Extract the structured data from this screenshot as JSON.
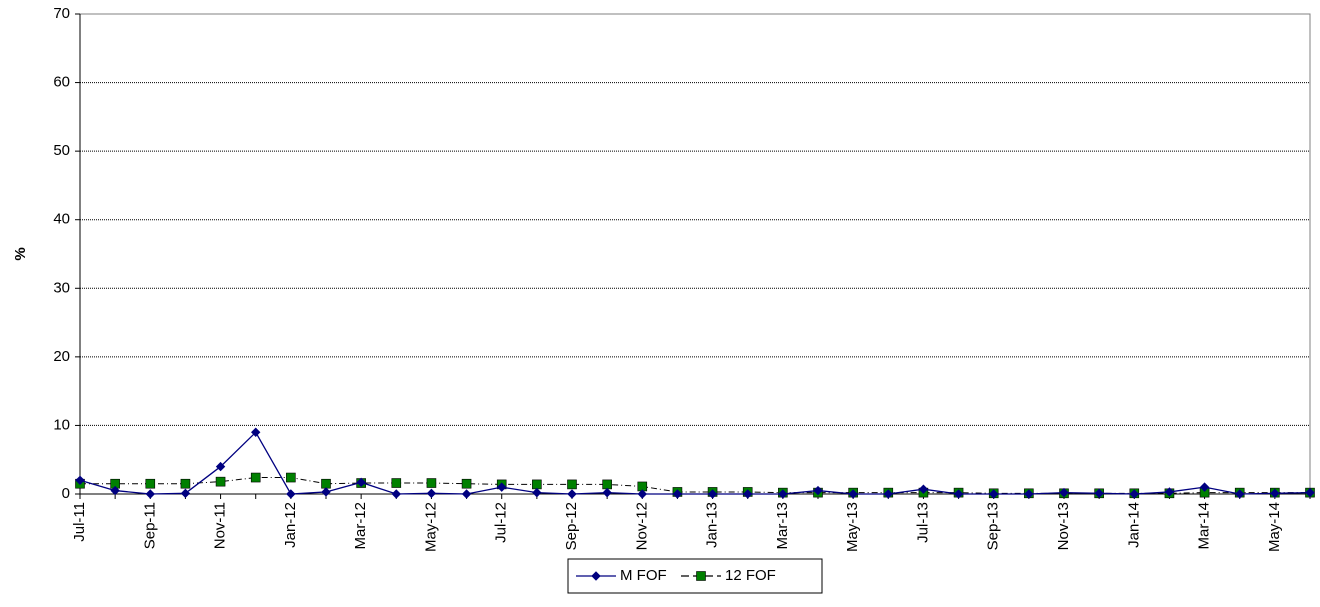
{
  "chart_data": {
    "type": "line",
    "title": "",
    "xlabel": "",
    "ylabel": "%",
    "ylim": [
      0,
      70
    ],
    "yticks": [
      0,
      10,
      20,
      30,
      40,
      50,
      60,
      70
    ],
    "grid": "horizontal",
    "legend_position": "bottom-center",
    "x": [
      "Jul-11",
      "Aug-11",
      "Sep-11",
      "Oct-11",
      "Nov-11",
      "Dec-11",
      "Jan-12",
      "Feb-12",
      "Mar-12",
      "Apr-12",
      "May-12",
      "Jun-12",
      "Jul-12",
      "Aug-12",
      "Sep-12",
      "Oct-12",
      "Nov-12",
      "Dec-12",
      "Jan-13",
      "Feb-13",
      "Mar-13",
      "Apr-13",
      "May-13",
      "Jun-13",
      "Jul-13",
      "Aug-13",
      "Sep-13",
      "Oct-13",
      "Nov-13",
      "Dec-13",
      "Jan-14",
      "Feb-14",
      "Mar-14",
      "Apr-14",
      "May-14",
      "Jun-14"
    ],
    "x_tick_labels": [
      "Jul-11",
      "Sep-11",
      "Nov-11",
      "Jan-12",
      "Mar-12",
      "May-12",
      "Jul-12",
      "Sep-12",
      "Nov-12",
      "Jan-13",
      "Mar-13",
      "May-13",
      "Jul-13",
      "Sep-13",
      "Nov-13",
      "Jan-14",
      "Mar-14",
      "May-14"
    ],
    "series": [
      {
        "name": "M FOF",
        "color": "#000080",
        "marker": "diamond",
        "line_style": "solid",
        "values": [
          2.0,
          0.5,
          0.0,
          0.1,
          4.0,
          9.0,
          0.0,
          0.3,
          1.7,
          0.0,
          0.1,
          0.0,
          1.0,
          0.2,
          0.0,
          0.2,
          0.0,
          0.0,
          0.0,
          0.0,
          0.0,
          0.5,
          0.0,
          0.0,
          0.7,
          0.0,
          0.0,
          0.0,
          0.2,
          0.1,
          0.0,
          0.3,
          1.0,
          0.0,
          0.1,
          0.2
        ]
      },
      {
        "name": "12 FOF",
        "color": "#008000",
        "marker": "square",
        "line_style": "dashed",
        "values": [
          1.5,
          1.5,
          1.5,
          1.5,
          1.8,
          2.4,
          2.4,
          1.5,
          1.6,
          1.6,
          1.6,
          1.5,
          1.4,
          1.4,
          1.4,
          1.4,
          1.1,
          0.3,
          0.3,
          0.3,
          0.2,
          0.2,
          0.2,
          0.2,
          0.2,
          0.2,
          0.1,
          0.1,
          0.1,
          0.1,
          0.1,
          0.1,
          0.2,
          0.2,
          0.2,
          0.2
        ]
      }
    ]
  }
}
